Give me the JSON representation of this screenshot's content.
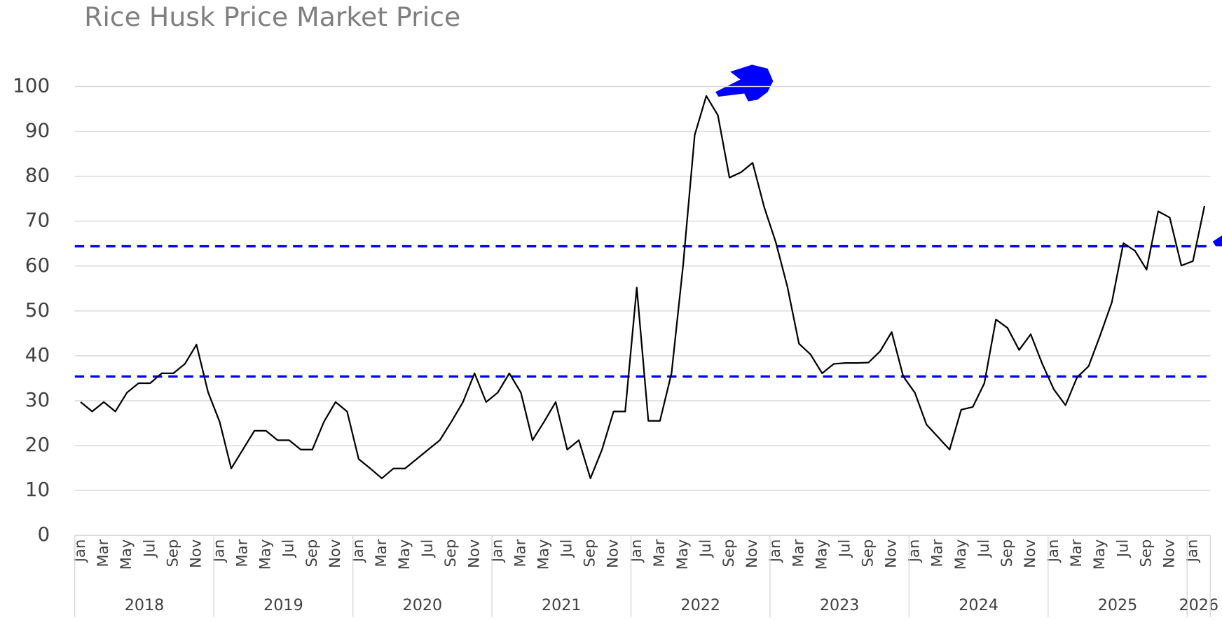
{
  "chart_data": {
    "type": "line",
    "title": "Rice Husk Price Market Price",
    "categories": [
      "Jan",
      null,
      "Mar",
      null,
      "May",
      null,
      "Jul",
      null,
      "Sep",
      null,
      "Nov",
      null,
      "Jan",
      null,
      "Mar",
      null,
      "May",
      null,
      "Jul",
      null,
      "Sep",
      null,
      "Nov",
      null,
      "Jan",
      null,
      "Mar",
      null,
      "May",
      null,
      "Jul",
      null,
      "Sep",
      null,
      "Nov",
      null,
      "Jan",
      null,
      "Mar",
      null,
      "May",
      null,
      "Jul",
      null,
      "Sep",
      null,
      "Nov",
      null,
      "Jan",
      null,
      "Mar",
      null,
      "May",
      null,
      "Jul",
      null,
      "Sep",
      null,
      "Nov",
      null,
      "Jan",
      null,
      "Mar",
      null,
      "May",
      null,
      "Jul",
      null,
      "Sep",
      null,
      "Nov",
      null,
      "Jan",
      null,
      "Mar",
      null,
      "May",
      null,
      "Jul",
      null,
      "Sep",
      null,
      "Nov",
      null,
      "Jan",
      null,
      "Mar",
      null,
      "May",
      null,
      "Jul",
      null,
      "Sep",
      null,
      "Nov",
      null,
      "Jan",
      null
    ],
    "years": [
      "2018",
      "2019",
      "2020",
      "2021",
      "2022",
      "2023",
      "2024",
      "2025",
      "2026"
    ],
    "series": [
      {
        "color": "#000000",
        "values": [
          29.7,
          27.6,
          29.7,
          27.6,
          31.8,
          33.9,
          33.9,
          36.1,
          36.1,
          38.2,
          42.5,
          31.9,
          25.3,
          14.9,
          19.1,
          23.3,
          23.3,
          21.2,
          21.2,
          19.1,
          19.1,
          25.3,
          29.7,
          27.6,
          17.0,
          14.9,
          12.7,
          14.9,
          14.9,
          17.0,
          19.1,
          21.2,
          25.3,
          29.7,
          36.1,
          29.7,
          31.8,
          36.1,
          31.8,
          21.2,
          25.3,
          29.7,
          19.1,
          21.2,
          12.7,
          19.1,
          27.6,
          27.6,
          55.2,
          25.5,
          25.5,
          36.1,
          60.2,
          89.2,
          97.9,
          93.6,
          79.7,
          80.9,
          83.0,
          73.1,
          65.3,
          55.4,
          42.7,
          40.3,
          36.1,
          38.2,
          38.4,
          38.4,
          38.5,
          41.0,
          45.3,
          35.4,
          31.8,
          24.7,
          21.9,
          19.1,
          28.0,
          28.6,
          33.9,
          48.1,
          46.2,
          41.3,
          44.8,
          38.2,
          32.5,
          29.0,
          35.2,
          37.7,
          44.6,
          51.9,
          65.1,
          63.4,
          59.2,
          72.2,
          70.8,
          60.1,
          61.1,
          73.4
        ]
      }
    ],
    "reference_lines": [
      {
        "value": 64.4,
        "color": "#0000ff"
      },
      {
        "value": 35.4,
        "color": "#0000ff"
      }
    ],
    "ylim": [
      0,
      100
    ],
    "yticks": [
      0,
      10,
      20,
      30,
      40,
      50,
      60,
      70,
      80,
      90,
      100
    ],
    "grid": true
  }
}
